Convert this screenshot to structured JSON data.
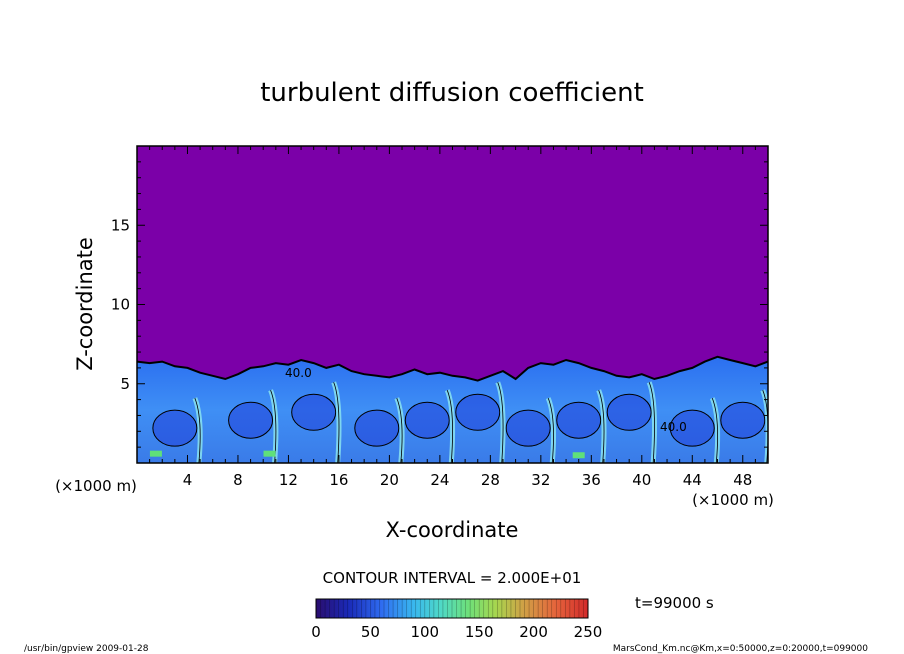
{
  "chart_data": {
    "type": "heatmap",
    "title": "turbulent diffusion coefficient",
    "xlabel": "X-coordinate",
    "ylabel": "Z-coordinate",
    "x_unit": "(×1000 m)",
    "y_unit": "(×1000 m)",
    "xlim": [
      0,
      50
    ],
    "ylim": [
      0,
      20
    ],
    "x_ticks": [
      4,
      8,
      12,
      16,
      20,
      24,
      28,
      32,
      36,
      40,
      44,
      48
    ],
    "y_ticks": [
      5,
      10,
      15
    ],
    "contour_interval_text": "CONTOUR INTERVAL = 2.000E+01",
    "contour_labels": [
      "40.0",
      "40.0"
    ],
    "colorbar": {
      "min": 0,
      "max": 250,
      "ticks": [
        0,
        50,
        100,
        150,
        200,
        250
      ]
    },
    "time_label": "t=99000 s",
    "boundary_layer_top_km": [
      [
        0,
        6.4
      ],
      [
        1,
        6.3
      ],
      [
        2,
        6.4
      ],
      [
        3,
        6.1
      ],
      [
        4,
        6.0
      ],
      [
        5,
        5.7
      ],
      [
        6,
        5.5
      ],
      [
        7,
        5.3
      ],
      [
        8,
        5.6
      ],
      [
        9,
        6.0
      ],
      [
        10,
        6.1
      ],
      [
        11,
        6.3
      ],
      [
        12,
        6.2
      ],
      [
        13,
        6.5
      ],
      [
        14,
        6.3
      ],
      [
        15,
        6.0
      ],
      [
        16,
        6.2
      ],
      [
        17,
        5.8
      ],
      [
        18,
        5.6
      ],
      [
        19,
        5.5
      ],
      [
        20,
        5.4
      ],
      [
        21,
        5.6
      ],
      [
        22,
        5.9
      ],
      [
        23,
        5.6
      ],
      [
        24,
        5.7
      ],
      [
        25,
        5.5
      ],
      [
        26,
        5.4
      ],
      [
        27,
        5.2
      ],
      [
        28,
        5.5
      ],
      [
        29,
        5.8
      ],
      [
        30,
        5.3
      ],
      [
        31,
        6.0
      ],
      [
        32,
        6.3
      ],
      [
        33,
        6.2
      ],
      [
        34,
        6.5
      ],
      [
        35,
        6.3
      ],
      [
        36,
        6.0
      ],
      [
        37,
        5.8
      ],
      [
        38,
        5.5
      ],
      [
        39,
        5.4
      ],
      [
        40,
        5.6
      ],
      [
        41,
        5.3
      ],
      [
        42,
        5.5
      ],
      [
        43,
        5.8
      ],
      [
        44,
        6.0
      ],
      [
        45,
        6.4
      ],
      [
        46,
        6.7
      ],
      [
        47,
        6.5
      ],
      [
        48,
        6.3
      ],
      [
        49,
        6.1
      ],
      [
        50,
        6.4
      ]
    ]
  },
  "footer": {
    "left": "/usr/bin/gpview   2009-01-28",
    "right": "MarsCond_Km.nc@Km,x=0:50000,z=0:20000,t=099000"
  }
}
